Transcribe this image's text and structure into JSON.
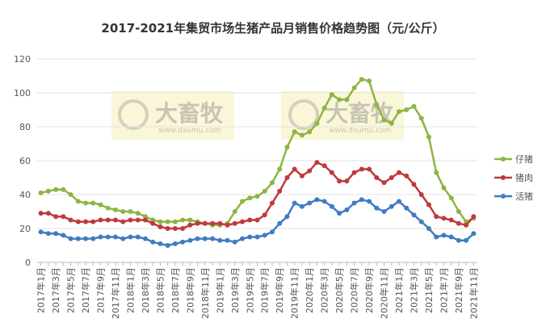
{
  "chart_data": {
    "type": "line",
    "title": "2017-2021年集贸市场生猪产品月销售价格趋势图（元/公斤）",
    "watermark": [
      "大畜牧",
      "www.dxumu.com"
    ],
    "categories": [
      "2017年1月",
      null,
      "2017年3月",
      null,
      "2017年5月",
      null,
      "2017年7月",
      null,
      "2017年9月",
      null,
      "2017年11月",
      null,
      "2018年1月",
      null,
      "2018年3月",
      null,
      "2018年5月",
      null,
      "2018年7月",
      null,
      "2018年9月",
      null,
      "2018年11月",
      null,
      "2019年1月",
      null,
      "2019年3月",
      null,
      "2019年5月",
      null,
      "2019年7月",
      null,
      "2019年9月",
      null,
      "2019年11月",
      null,
      "2020年1月",
      null,
      "2020年3月",
      null,
      "2020年5月",
      null,
      "2020年7月",
      null,
      "2020年9月",
      null,
      "2020年11月",
      null,
      "2021年1月",
      null,
      "2021年3月",
      null,
      "2021年5月",
      null,
      "2021年7月",
      null,
      "2021年9月",
      null,
      "2021年11月"
    ],
    "series": [
      {
        "name": "仔猪",
        "color": "#8db542",
        "values": [
          41,
          42,
          43,
          43,
          40,
          36,
          35,
          35,
          34,
          32,
          31,
          30,
          30,
          29,
          27,
          25,
          24,
          24,
          24,
          25,
          25,
          24,
          23,
          22,
          22,
          23,
          30,
          36,
          38,
          39,
          42,
          47,
          55,
          68,
          77,
          75,
          77,
          82,
          91,
          99,
          96,
          96,
          103,
          108,
          107,
          93,
          84,
          82,
          89,
          90,
          92,
          85,
          74,
          53,
          44,
          38,
          30,
          24,
          26
        ]
      },
      {
        "name": "猪肉",
        "color": "#c0393b",
        "values": [
          29,
          29,
          27,
          27,
          25,
          24,
          24,
          24,
          25,
          25,
          25,
          24,
          25,
          25,
          25,
          23,
          21,
          20,
          20,
          20,
          22,
          23,
          23,
          23,
          23,
          22,
          23,
          24,
          25,
          25,
          28,
          35,
          42,
          50,
          55,
          51,
          54,
          59,
          57,
          53,
          48,
          48,
          53,
          55,
          55,
          50,
          47,
          50,
          53,
          51,
          46,
          40,
          34,
          27,
          26,
          25,
          23,
          22,
          27
        ]
      },
      {
        "name": "活猪",
        "color": "#3f7cc3",
        "values": [
          18,
          17,
          17,
          16,
          14,
          14,
          14,
          14,
          15,
          15,
          15,
          14,
          15,
          15,
          14,
          12,
          11,
          10,
          11,
          12,
          13,
          14,
          14,
          14,
          13,
          13,
          12,
          14,
          15,
          15,
          16,
          18,
          23,
          27,
          35,
          33,
          35,
          37,
          36,
          33,
          29,
          31,
          35,
          37,
          36,
          32,
          30,
          33,
          36,
          32,
          28,
          24,
          20,
          15,
          16,
          15,
          13,
          13,
          17
        ]
      }
    ],
    "ylim": [
      0,
      120
    ],
    "yticks": [
      0,
      20,
      40,
      60,
      80,
      100,
      120
    ],
    "grid": true
  }
}
